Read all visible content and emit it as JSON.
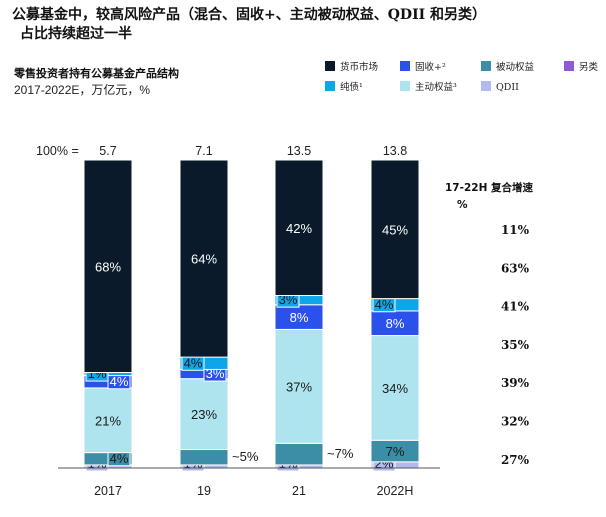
{
  "title": {
    "line1": "公募基金中，较高风险产品（混合、固收+、主动被动权益、QDII 和另类）",
    "line2": "占比持续超过一半"
  },
  "subtitle": "零售投资者持有公募基金产品结构",
  "units": "2017-2022E，万亿元，%",
  "total_prefix": "100% =",
  "cagr_header": [
    "17-22H 复合增速",
    "%"
  ],
  "chart_data": {
    "type": "bar",
    "stacked": true,
    "normalized": true,
    "categories": [
      "2017",
      "19",
      "21",
      "2022H"
    ],
    "totals": [
      "5.7",
      "7.1",
      "13.5",
      "13.8"
    ],
    "series": [
      {
        "name": "QDII",
        "color": "#b3baf2",
        "values": [
          1,
          1,
          1,
          2
        ],
        "labels": [
          "1%",
          "1%",
          "1%",
          "2%"
        ],
        "cagr": "27%"
      },
      {
        "name": "被动权益",
        "color": "#3b8ea5",
        "values": [
          4,
          5,
          7,
          7
        ],
        "labels": [
          "4%",
          "~5%",
          "~7%",
          "7%"
        ],
        "cagr": "32%"
      },
      {
        "name": "主动权益³",
        "color": "#aee4ee",
        "values": [
          21,
          23,
          37,
          34
        ],
        "labels": [
          "21%",
          "23%",
          "37%",
          "34%"
        ],
        "cagr": "39%"
      },
      {
        "name": "固收+²",
        "color": "#2a51ec",
        "values": [
          4,
          3,
          8,
          8
        ],
        "labels": [
          "4%",
          "3%",
          "8%",
          "8%"
        ],
        "cagr": "35%"
      },
      {
        "name": "纯债¹",
        "color": "#0fa5e9",
        "values": [
          1,
          4,
          3,
          4
        ],
        "labels": [
          "1%",
          "4%",
          "3%",
          "4%"
        ],
        "cagr": "41%"
      },
      {
        "name": "另类",
        "color": "#8e5ad6",
        "values": [
          0,
          0,
          0,
          0
        ],
        "labels": [
          "",
          "",
          "",
          ""
        ],
        "cagr": "63%"
      },
      {
        "name": "货币市场",
        "color": "#0a1a2a",
        "values": [
          68,
          64,
          42,
          45
        ],
        "labels": [
          "68%",
          "64%",
          "42%",
          "45%"
        ],
        "cagr": "11%"
      }
    ],
    "legend_order": [
      "货币市场",
      "固收+²",
      "被动权益",
      "另类",
      "纯债¹",
      "主动权益³",
      "QDII"
    ],
    "ylim": [
      0,
      100
    ]
  }
}
